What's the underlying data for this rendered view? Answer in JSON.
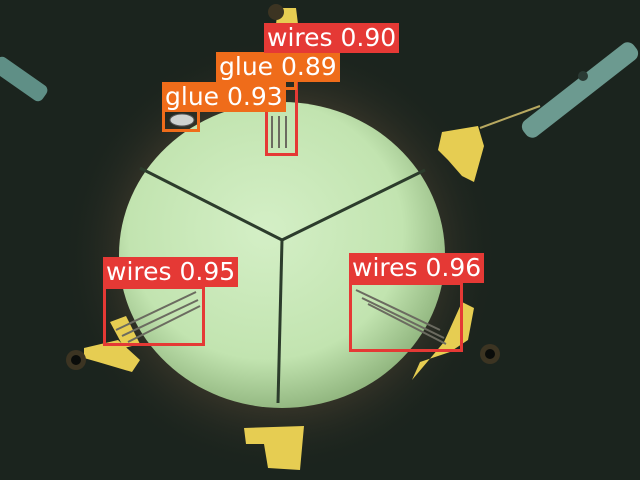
{
  "image": {
    "subject": "microscope view of a circular specimen with wire and glue detections",
    "colors": {
      "background": "#1a221c",
      "specimen_light": "#cfeec0",
      "specimen_dark": "#9ec68c",
      "gold_pad": "#e8cf54",
      "wires_box": "#e53935",
      "glue_box": "#ef6c1a"
    }
  },
  "detections": [
    {
      "label": "wires",
      "score": "0.90",
      "class": "wires"
    },
    {
      "label": "glue",
      "score": "0.89",
      "class": "glue"
    },
    {
      "label": "glue",
      "score": "0.93",
      "class": "glue"
    },
    {
      "label": "wires",
      "score": "0.95",
      "class": "wires"
    },
    {
      "label": "wires",
      "score": "0.96",
      "class": "wires"
    }
  ]
}
